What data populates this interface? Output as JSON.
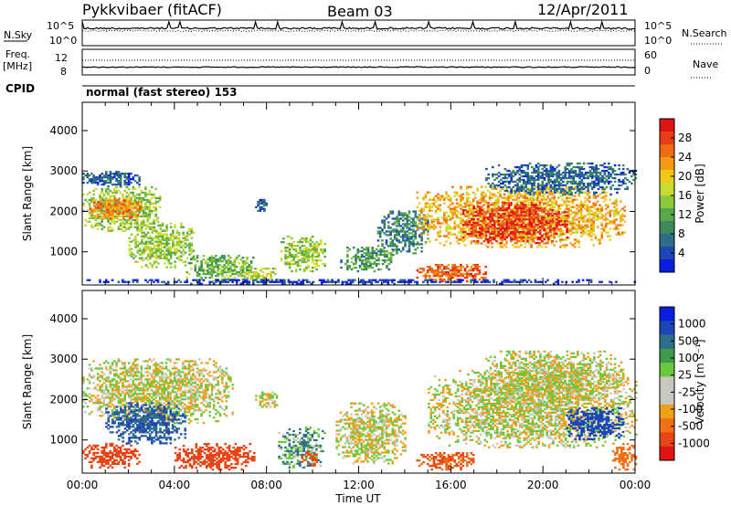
{
  "header": {
    "station": "Pykkvibaer (fitACF)",
    "beam": "Beam 03",
    "date": "12/Apr/2011"
  },
  "top_panels": {
    "nsky_label": "N.Sky",
    "nsearch_label": "N.Search",
    "noise_ticks_left": [
      "10^5",
      "10^0"
    ],
    "noise_ticks_right": [
      "10^5",
      "10^0"
    ],
    "freq_label_1": "Freq.",
    "freq_label_2": "[MHz]",
    "freq_ticks": [
      "12",
      "8"
    ],
    "nave_label": "Nave",
    "nave_ticks": [
      "60",
      "0"
    ],
    "cpid_label": "CPID",
    "cpid_text": "normal (fast stereo) 153"
  },
  "colors": {
    "power_scale": [
      "#0a1ee0",
      "#1e46b4",
      "#2e6e8a",
      "#3c8a5a",
      "#5aa84a",
      "#8cc83c",
      "#c8dc32",
      "#f0c818",
      "#f89a14",
      "#f06a14",
      "#e83c14",
      "#e01414"
    ],
    "velocity_scale": [
      "#0a1ee0",
      "#1e46b4",
      "#2e6e8a",
      "#3c9a4a",
      "#6ac83c",
      "#c8c8c0",
      "#c8c8c0",
      "#f0a018",
      "#f07014",
      "#e84414",
      "#e01414"
    ]
  },
  "chart_data": [
    {
      "type": "heatmap",
      "name_label": "Power [dB]",
      "ylabel": "Slant Range [km]",
      "xlabel": "Time UT",
      "x_ticks": [
        "00:00",
        "04:00",
        "08:00",
        "12:00",
        "16:00",
        "20:00",
        "00:00"
      ],
      "y_ticks": [
        1000,
        2000,
        3000,
        4000
      ],
      "xlim_hours": [
        0,
        24
      ],
      "ylim_km": [
        180,
        4700
      ],
      "colorbar_ticks": [
        4,
        8,
        12,
        16,
        20,
        24,
        28
      ],
      "colorbar_range": [
        0,
        30
      ],
      "echo_regions": [
        {
          "t0": 0.0,
          "t1": 3.4,
          "r0": 1500,
          "r1": 2600,
          "level": 14
        },
        {
          "t0": 0.3,
          "t1": 2.5,
          "r0": 1800,
          "r1": 2300,
          "level": 22
        },
        {
          "t0": 0.0,
          "t1": 2.5,
          "r0": 2600,
          "r1": 3000,
          "level": 6
        },
        {
          "t0": 2.0,
          "t1": 4.8,
          "r0": 600,
          "r1": 1700,
          "level": 14
        },
        {
          "t0": 4.5,
          "t1": 7.5,
          "r0": 250,
          "r1": 900,
          "level": 12
        },
        {
          "t0": 6.8,
          "t1": 8.5,
          "r0": 250,
          "r1": 600,
          "level": 16
        },
        {
          "t0": 7.5,
          "t1": 8.0,
          "r0": 1950,
          "r1": 2300,
          "level": 6
        },
        {
          "t0": 8.6,
          "t1": 10.5,
          "r0": 500,
          "r1": 1400,
          "level": 14
        },
        {
          "t0": 11.2,
          "t1": 13.5,
          "r0": 500,
          "r1": 1100,
          "level": 10
        },
        {
          "t0": 12.8,
          "t1": 15.0,
          "r0": 900,
          "r1": 2000,
          "level": 8
        },
        {
          "t0": 14.5,
          "t1": 17.5,
          "r0": 250,
          "r1": 700,
          "level": 24
        },
        {
          "t0": 14.5,
          "t1": 23.5,
          "r0": 1100,
          "r1": 2600,
          "level": 20
        },
        {
          "t0": 16.5,
          "t1": 21.0,
          "r0": 1200,
          "r1": 2200,
          "level": 27
        },
        {
          "t0": 17.5,
          "t1": 24.0,
          "r0": 2400,
          "r1": 3200,
          "level": 6
        },
        {
          "t0": 0.0,
          "t1": 24.0,
          "r0": 190,
          "r1": 300,
          "level": 3
        }
      ]
    },
    {
      "type": "heatmap",
      "name_label": "Velocity [m s⁻¹]",
      "ylabel": "Slant Range [km]",
      "xlabel": "Time UT",
      "x_ticks": [
        "00:00",
        "04:00",
        "08:00",
        "12:00",
        "16:00",
        "20:00",
        "00:00"
      ],
      "y_ticks": [
        1000,
        2000,
        3000,
        4000
      ],
      "xlim_hours": [
        0,
        24
      ],
      "ylim_km": [
        180,
        4700
      ],
      "colorbar_ticks": [
        1000,
        500,
        100,
        25,
        -25,
        -100,
        -500,
        -1000
      ],
      "echo_regions": [
        {
          "t0": 0.0,
          "t1": 6.5,
          "r0": 1400,
          "r1": 3000,
          "level": 0
        },
        {
          "t0": 0.0,
          "t1": 2.5,
          "r0": 300,
          "r1": 900,
          "level": -600
        },
        {
          "t0": 1.0,
          "t1": 4.5,
          "r0": 900,
          "r1": 1900,
          "level": 300
        },
        {
          "t0": 4.0,
          "t1": 7.5,
          "r0": 250,
          "r1": 900,
          "level": -400
        },
        {
          "t0": 7.5,
          "t1": 8.5,
          "r0": 1800,
          "r1": 2200,
          "level": 0
        },
        {
          "t0": 8.5,
          "t1": 10.5,
          "r0": 300,
          "r1": 1300,
          "level": 80
        },
        {
          "t0": 9.5,
          "t1": 10.2,
          "r0": 350,
          "r1": 700,
          "level": -500
        },
        {
          "t0": 11.0,
          "t1": 14.0,
          "r0": 400,
          "r1": 1900,
          "level": 0
        },
        {
          "t0": 14.5,
          "t1": 17.0,
          "r0": 250,
          "r1": 700,
          "level": -300
        },
        {
          "t0": 15.0,
          "t1": 24.0,
          "r0": 800,
          "r1": 2700,
          "level": 0
        },
        {
          "t0": 17.5,
          "t1": 23.5,
          "r0": 2000,
          "r1": 3200,
          "level": 0
        },
        {
          "t0": 21.0,
          "t1": 23.5,
          "r0": 1000,
          "r1": 1800,
          "level": 400
        },
        {
          "t0": 23.0,
          "t1": 24.0,
          "r0": 250,
          "r1": 900,
          "level": -200
        }
      ]
    }
  ]
}
